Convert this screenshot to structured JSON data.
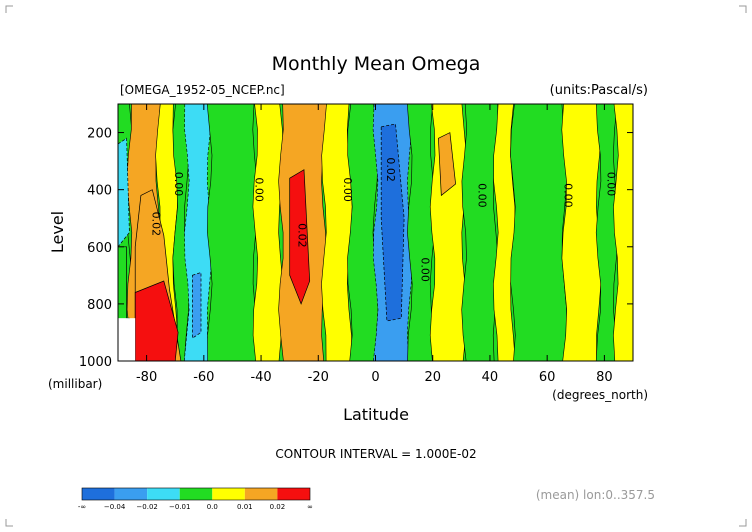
{
  "chart_data": {
    "type": "heatmap",
    "title": "Monthly Mean Omega",
    "file_label": "[OMEGA_1952-05_NCEP.nc]",
    "units_label": "(units:Pascal/s)",
    "xlabel": "Latitude",
    "x_unit": "(degrees_north)",
    "ylabel": "Level",
    "y_unit": "(millibar)",
    "xlim": [
      -90,
      90
    ],
    "ylim": [
      1000,
      100
    ],
    "x_ticks": [
      -80,
      -60,
      -40,
      -20,
      0,
      20,
      40,
      60,
      80
    ],
    "x_tick_labels": [
      "-80",
      "-60",
      "-40",
      "-20",
      "0",
      "20",
      "40",
      "60",
      "80"
    ],
    "y_ticks": [
      200,
      400,
      600,
      800,
      1000
    ],
    "y_tick_labels": [
      "200",
      "400",
      "600",
      "800",
      "1000"
    ],
    "contour_interval_text": "CONTOUR INTERVAL = 1.000E-02",
    "footer_note": "(mean) lon:0..357.5",
    "colorbar": {
      "colors": [
        "#1e6fdc",
        "#3a9ef0",
        "#3ddcf5",
        "#22dc22",
        "#ffff00",
        "#f5a623",
        "#f50f0f"
      ],
      "labels": [
        "-∞",
        "−0.04",
        "−0.02",
        "−0.01",
        "0.0",
        "0.01",
        "0.02",
        "∞"
      ]
    },
    "bands": [
      {
        "lat0": -90,
        "lat1": -86,
        "level": 0
      },
      {
        "lat0": -86,
        "lat1": -76,
        "level": 2
      },
      {
        "lat0": -76,
        "lat1": -70,
        "level": 1
      },
      {
        "lat0": -70,
        "lat1": -66,
        "level": 0
      },
      {
        "lat0": -66,
        "lat1": -58,
        "level": -1
      },
      {
        "lat0": -58,
        "lat1": -42,
        "level": 0
      },
      {
        "lat0": -42,
        "lat1": -33,
        "level": 1
      },
      {
        "lat0": -33,
        "lat1": -18,
        "level": 2
      },
      {
        "lat0": -18,
        "lat1": -9,
        "level": 1
      },
      {
        "lat0": -9,
        "lat1": 0,
        "level": 0
      },
      {
        "lat0": 0,
        "lat1": 12,
        "level": -2
      },
      {
        "lat0": 12,
        "lat1": 20,
        "level": 0
      },
      {
        "lat0": 20,
        "lat1": 31,
        "level": 1
      },
      {
        "lat0": 31,
        "lat1": 42,
        "level": 0
      },
      {
        "lat0": 42,
        "lat1": 48,
        "level": 1
      },
      {
        "lat0": 48,
        "lat1": 66,
        "level": 0
      },
      {
        "lat0": 66,
        "lat1": 78,
        "level": 1
      },
      {
        "lat0": 78,
        "lat1": 84,
        "level": 0
      },
      {
        "lat0": 84,
        "lat1": 90,
        "level": 1
      }
    ],
    "contour_labels": [
      {
        "text": "0.00",
        "lat": -70,
        "level_mb": 380
      },
      {
        "text": "0.02",
        "lat": -78,
        "level_mb": 520
      },
      {
        "text": "0.00",
        "lat": -42,
        "level_mb": 400
      },
      {
        "text": "0.02",
        "lat": -27,
        "level_mb": 560
      },
      {
        "text": "0.00",
        "lat": -11,
        "level_mb": 400
      },
      {
        "text": "0.02",
        "lat": 4,
        "level_mb": 330
      },
      {
        "text": "0.00",
        "lat": 16,
        "level_mb": 680
      },
      {
        "text": "0.00",
        "lat": 36,
        "level_mb": 420
      },
      {
        "text": "0.00",
        "lat": 66,
        "level_mb": 420
      },
      {
        "text": "0.00",
        "lat": 81,
        "level_mb": 380
      }
    ]
  }
}
